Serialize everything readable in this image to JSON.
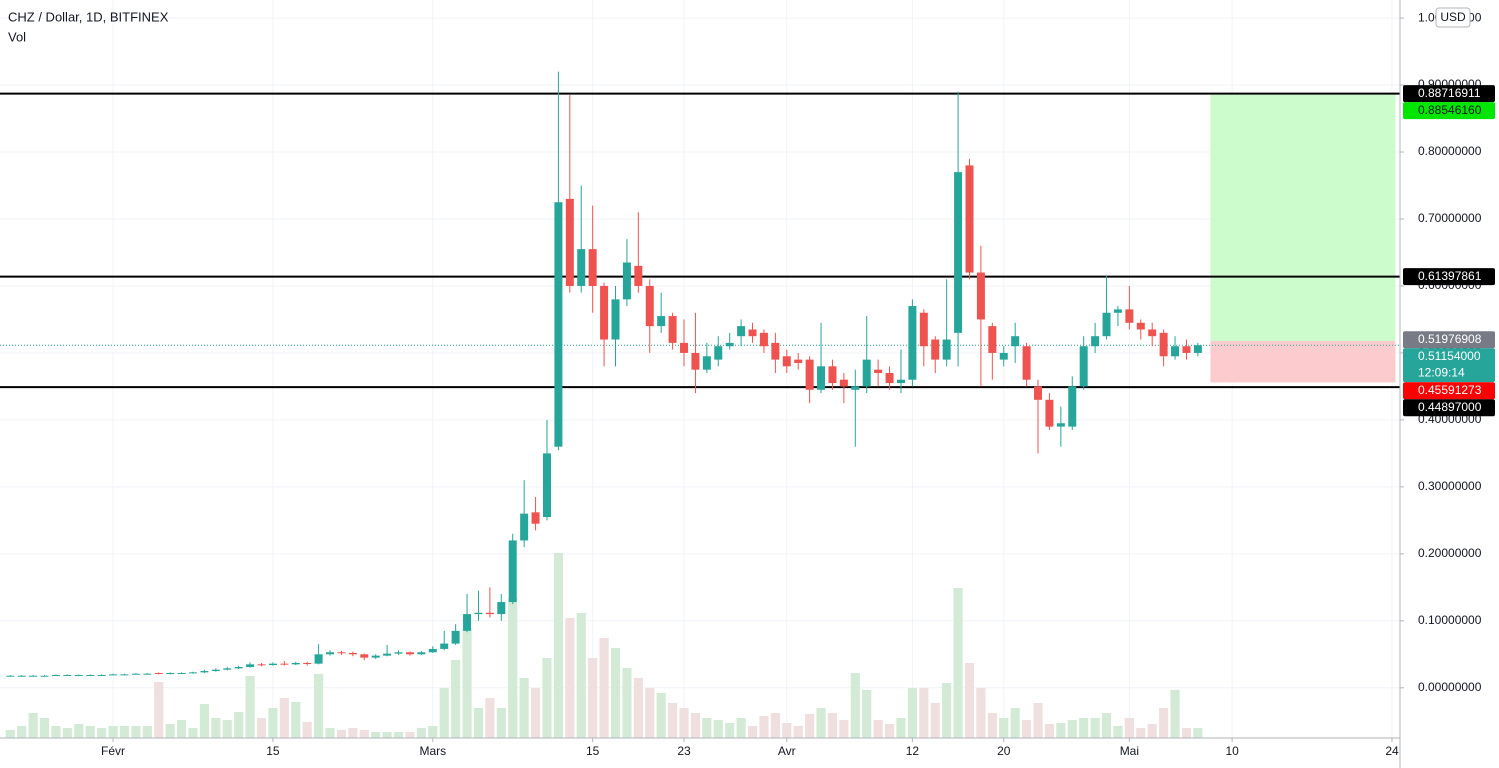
{
  "chart_data": {
    "type": "candlestick",
    "title": "CHZ / Dollar, 1D, BITFINEX",
    "subtitle": "Vol",
    "currency": "USD",
    "grid": true,
    "xlim": [
      -0.9,
      121.7
    ],
    "ylim": [
      -0.075,
      1.027
    ],
    "vlim": [
      0,
      200
    ],
    "xticks": [
      {
        "value": 9,
        "label": "Févr"
      },
      {
        "value": 23,
        "label": "15"
      },
      {
        "value": 37,
        "label": "Mars"
      },
      {
        "value": 51,
        "label": "15"
      },
      {
        "value": 59,
        "label": "23"
      },
      {
        "value": 68,
        "label": "Avr"
      },
      {
        "value": 79,
        "label": "12"
      },
      {
        "value": 87,
        "label": "20"
      },
      {
        "value": 98,
        "label": "Mai"
      },
      {
        "value": 107,
        "label": "10"
      },
      {
        "value": 121,
        "label": "24"
      }
    ],
    "yticks": [
      {
        "value": 0,
        "label": "0.00000000"
      },
      {
        "value": 0.1,
        "label": "0.10000000"
      },
      {
        "value": 0.2,
        "label": "0.20000000"
      },
      {
        "value": 0.3,
        "label": "0.30000000"
      },
      {
        "value": 0.4,
        "label": "0.40000000"
      },
      {
        "value": 0.5,
        "label": "0.50000000"
      },
      {
        "value": 0.6,
        "label": "0.60000000"
      },
      {
        "value": 0.7,
        "label": "0.70000000"
      },
      {
        "value": 0.8,
        "label": "0.80000000"
      },
      {
        "value": 0.9,
        "label": "0.90000000"
      },
      {
        "value": 1,
        "label": "1.00000000"
      }
    ],
    "up_color": "#26a69a",
    "down_color": "#ef5350",
    "volume_up_color": "#d3ead6",
    "volume_down_color": "#efdfdf",
    "open": [
      0.018,
      0.018,
      0.018,
      0.018,
      0.018,
      0.019,
      0.019,
      0.019,
      0.019,
      0.019,
      0.02,
      0.02,
      0.021,
      0.022,
      0.021,
      0.022,
      0.022,
      0.023,
      0.025,
      0.027,
      0.029,
      0.031,
      0.035,
      0.034,
      0.036,
      0.035,
      0.037,
      0.036,
      0.05,
      0.053,
      0.052,
      0.05,
      0.045,
      0.048,
      0.051,
      0.053,
      0.05,
      0.053,
      0.058,
      0.066,
      0.085,
      0.11,
      0.112,
      0.11,
      0.128,
      0.22,
      0.262,
      0.255,
      0.36,
      0.73,
      0.6,
      0.655,
      0.6,
      0.52,
      0.58,
      0.63,
      0.6,
      0.54,
      0.555,
      0.515,
      0.5,
      0.475,
      0.49,
      0.51,
      0.525,
      0.535,
      0.53,
      0.515,
      0.495,
      0.49,
      0.49,
      0.445,
      0.48,
      0.46,
      0.445,
      0.45,
      0.475,
      0.47,
      0.455,
      0.46,
      0.56,
      0.52,
      0.49,
      0.53,
      0.78,
      0.62,
      0.54,
      0.49,
      0.51,
      0.51,
      0.45,
      0.43,
      0.39,
      0.39,
      0.45,
      0.51,
      0.525,
      0.56,
      0.565,
      0.545,
      0.535,
      0.53,
      0.495,
      0.51,
      0.5
    ],
    "high": [
      0.019,
      0.019,
      0.019,
      0.019,
      0.02,
      0.02,
      0.02,
      0.02,
      0.02,
      0.021,
      0.021,
      0.022,
      0.022,
      0.023,
      0.023,
      0.023,
      0.024,
      0.027,
      0.029,
      0.031,
      0.033,
      0.038,
      0.037,
      0.038,
      0.04,
      0.039,
      0.039,
      0.065,
      0.056,
      0.055,
      0.054,
      0.051,
      0.05,
      0.064,
      0.056,
      0.054,
      0.055,
      0.062,
      0.085,
      0.095,
      0.14,
      0.145,
      0.15,
      0.14,
      0.23,
      0.31,
      0.285,
      0.4,
      0.92,
      0.885,
      0.75,
      0.72,
      0.605,
      0.6,
      0.67,
      0.71,
      0.61,
      0.59,
      0.56,
      0.55,
      0.56,
      0.515,
      0.525,
      0.53,
      0.55,
      0.545,
      0.535,
      0.53,
      0.505,
      0.5,
      0.495,
      0.545,
      0.49,
      0.47,
      0.475,
      0.555,
      0.49,
      0.48,
      0.505,
      0.58,
      0.565,
      0.525,
      0.61,
      0.89,
      0.79,
      0.66,
      0.545,
      0.51,
      0.545,
      0.515,
      0.46,
      0.44,
      0.42,
      0.465,
      0.525,
      0.545,
      0.615,
      0.57,
      0.6,
      0.55,
      0.545,
      0.535,
      0.525,
      0.52,
      0.515
    ],
    "low": [
      0.017,
      0.017,
      0.017,
      0.017,
      0.018,
      0.018,
      0.018,
      0.018,
      0.018,
      0.019,
      0.019,
      0.02,
      0.02,
      0.02,
      0.02,
      0.021,
      0.021,
      0.022,
      0.024,
      0.026,
      0.028,
      0.03,
      0.032,
      0.033,
      0.033,
      0.034,
      0.033,
      0.035,
      0.048,
      0.049,
      0.047,
      0.041,
      0.043,
      0.047,
      0.049,
      0.048,
      0.049,
      0.052,
      0.056,
      0.064,
      0.083,
      0.1,
      0.105,
      0.1,
      0.125,
      0.21,
      0.235,
      0.25,
      0.355,
      0.59,
      0.59,
      0.56,
      0.48,
      0.48,
      0.57,
      0.59,
      0.5,
      0.53,
      0.505,
      0.48,
      0.44,
      0.47,
      0.48,
      0.505,
      0.51,
      0.515,
      0.5,
      0.47,
      0.47,
      0.475,
      0.425,
      0.44,
      0.445,
      0.425,
      0.36,
      0.44,
      0.45,
      0.445,
      0.44,
      0.45,
      0.48,
      0.47,
      0.48,
      0.48,
      0.61,
      0.45,
      0.46,
      0.48,
      0.485,
      0.45,
      0.35,
      0.385,
      0.36,
      0.385,
      0.445,
      0.5,
      0.52,
      0.54,
      0.535,
      0.52,
      0.51,
      0.48,
      0.49,
      0.49,
      0.495
    ],
    "close": [
      0.018,
      0.018,
      0.018,
      0.018,
      0.019,
      0.019,
      0.019,
      0.019,
      0.019,
      0.02,
      0.02,
      0.021,
      0.021,
      0.021,
      0.022,
      0.022,
      0.023,
      0.025,
      0.027,
      0.029,
      0.031,
      0.035,
      0.034,
      0.036,
      0.035,
      0.037,
      0.036,
      0.05,
      0.053,
      0.052,
      0.05,
      0.045,
      0.048,
      0.051,
      0.053,
      0.05,
      0.053,
      0.058,
      0.066,
      0.085,
      0.11,
      0.112,
      0.11,
      0.128,
      0.22,
      0.26,
      0.245,
      0.35,
      0.725,
      0.6,
      0.655,
      0.6,
      0.52,
      0.58,
      0.635,
      0.6,
      0.54,
      0.555,
      0.515,
      0.5,
      0.475,
      0.495,
      0.51,
      0.515,
      0.54,
      0.525,
      0.51,
      0.49,
      0.48,
      0.485,
      0.445,
      0.48,
      0.455,
      0.45,
      0.45,
      0.49,
      0.47,
      0.455,
      0.46,
      0.57,
      0.51,
      0.49,
      0.52,
      0.77,
      0.62,
      0.55,
      0.5,
      0.5,
      0.525,
      0.46,
      0.43,
      0.39,
      0.395,
      0.45,
      0.51,
      0.525,
      0.56,
      0.565,
      0.545,
      0.535,
      0.525,
      0.495,
      0.51,
      0.5,
      0.5115
    ],
    "volume": [
      8,
      12,
      25,
      20,
      12,
      10,
      14,
      12,
      10,
      12,
      12,
      12,
      12,
      56,
      14,
      18,
      10,
      34,
      20,
      18,
      26,
      62,
      20,
      30,
      40,
      36,
      16,
      64,
      10,
      8,
      10,
      8,
      6,
      6,
      6,
      6,
      10,
      12,
      50,
      78,
      110,
      30,
      40,
      30,
      140,
      60,
      50,
      80,
      185,
      120,
      125,
      80,
      100,
      90,
      70,
      60,
      50,
      45,
      35,
      30,
      25,
      20,
      18,
      15,
      20,
      12,
      22,
      25,
      15,
      12,
      24,
      30,
      25,
      18,
      65,
      48,
      18,
      14,
      20,
      50,
      50,
      35,
      55,
      150,
      75,
      50,
      25,
      20,
      30,
      18,
      35,
      14,
      15,
      18,
      20,
      20,
      25,
      12,
      20,
      10,
      14,
      30,
      48,
      10,
      10
    ],
    "levels": [
      {
        "value": 0.88716911,
        "label": "0.88716911"
      },
      {
        "value": 0.61397861,
        "label": "0.61397861"
      },
      {
        "value": 0.44897,
        "label": "0.44897000"
      }
    ],
    "position": {
      "start": 105.1,
      "end": 121.3,
      "entry": 0.518,
      "target": {
        "value": 0.8854616,
        "label": "0.88546160",
        "color": "#00e600"
      },
      "stop": {
        "value": 0.45591273,
        "label": "0.45591273",
        "color": "#ff0000"
      },
      "profit_color": "#ccfccb",
      "loss_color": "#fccbcd"
    },
    "previous": {
      "value": 0.51976908,
      "label": "0.51976908",
      "color": "#787b86"
    },
    "last_price": {
      "value": 0.51154,
      "label": "0.51154000",
      "countdown": "12:09:14",
      "color": "#26a69a"
    }
  }
}
